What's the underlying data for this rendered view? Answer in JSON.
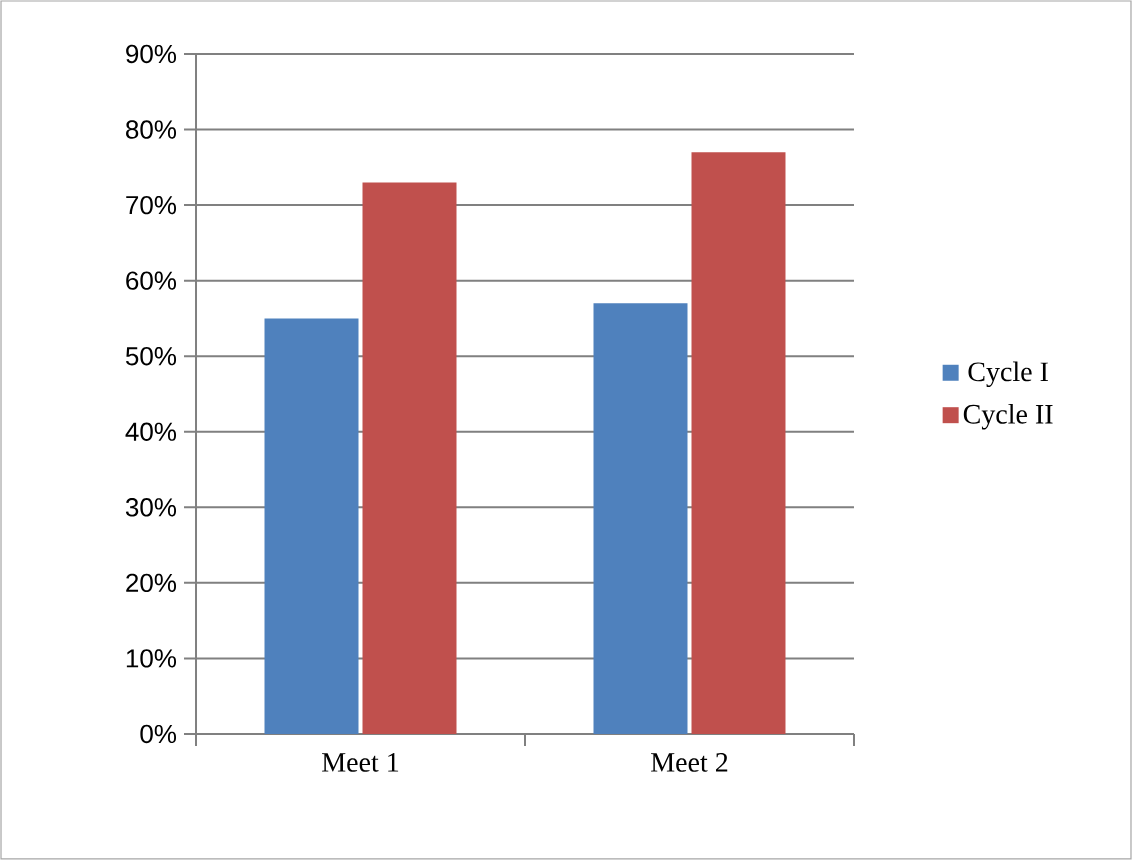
{
  "chart_data": {
    "type": "bar",
    "categories": [
      "Meet 1",
      "Meet 2"
    ],
    "series": [
      {
        "name": "Cycle I",
        "color": "#4f81bd",
        "values": [
          55,
          57
        ]
      },
      {
        "name": "Cycle II",
        "color": "#c0504d",
        "values": [
          73,
          77
        ]
      }
    ],
    "ylim": [
      0,
      90
    ],
    "yticks": [
      {
        "value": 0,
        "label": "0%"
      },
      {
        "value": 10,
        "label": "10%"
      },
      {
        "value": 20,
        "label": "20%"
      },
      {
        "value": 30,
        "label": "30%"
      },
      {
        "value": 40,
        "label": "40%"
      },
      {
        "value": 50,
        "label": "50%"
      },
      {
        "value": 60,
        "label": "60%"
      },
      {
        "value": 70,
        "label": "70%"
      },
      {
        "value": 80,
        "label": "80%"
      },
      {
        "value": 90,
        "label": "90%"
      }
    ],
    "grid": "y",
    "legend": "right"
  }
}
